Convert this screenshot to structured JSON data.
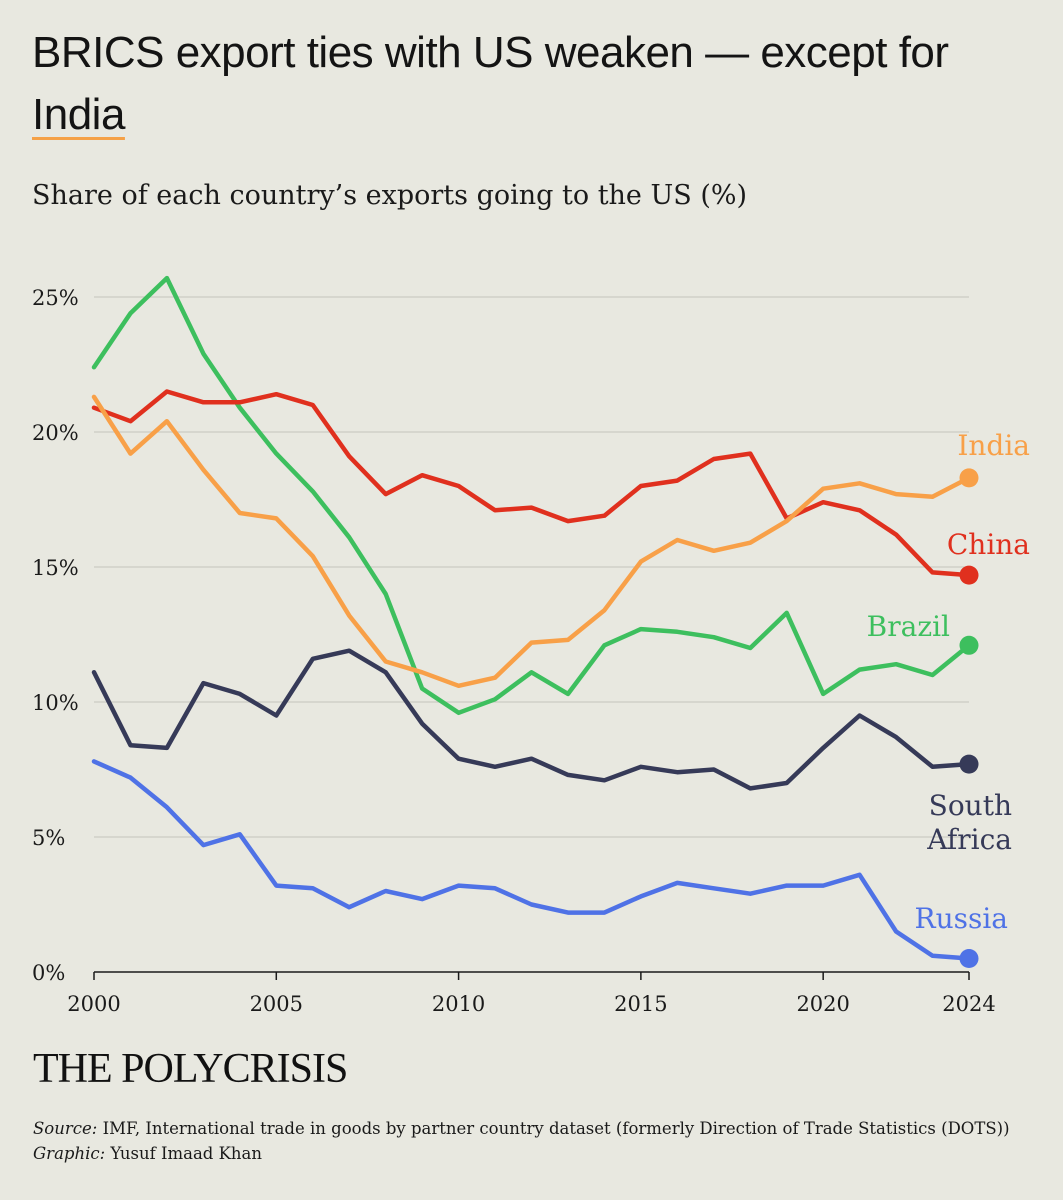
{
  "header": {
    "title_main": "BRICS export ties with US weaken — except for ",
    "title_highlight": "India",
    "subtitle": "Share of each country’s exports going to the US (%)"
  },
  "footer": {
    "brand": "THE POLYCRISIS",
    "source_label": "Source:",
    "source_text": "IMF, International trade in goods by partner country dataset (formerly Direction of Trade Statistics (DOTS))",
    "graphic_label": "Graphic:",
    "graphic_text": "Yusuf Imaad Khan"
  },
  "chart_data": {
    "type": "line",
    "title": "Share of each country’s exports going to the US (%)",
    "xlabel": "",
    "ylabel": "",
    "xlim": [
      2000,
      2024
    ],
    "ylim": [
      0,
      25
    ],
    "x_ticks": [
      2000,
      2005,
      2010,
      2015,
      2020,
      2024
    ],
    "y_ticks": [
      0,
      5,
      10,
      15,
      20,
      25
    ],
    "y_tick_labels": [
      "0%",
      "5%",
      "10%",
      "15%",
      "20%",
      "25%"
    ],
    "x": [
      2000,
      2001,
      2002,
      2003,
      2004,
      2005,
      2006,
      2007,
      2008,
      2009,
      2010,
      2011,
      2012,
      2013,
      2014,
      2015,
      2016,
      2017,
      2018,
      2019,
      2020,
      2021,
      2022,
      2023,
      2024
    ],
    "series": [
      {
        "name": "Russia",
        "label": "Russia",
        "color": "#4f72e6",
        "values": [
          7.8,
          7.2,
          6.1,
          4.7,
          5.1,
          3.2,
          3.1,
          2.4,
          3.0,
          2.7,
          3.2,
          3.1,
          2.5,
          2.2,
          2.2,
          2.8,
          3.3,
          3.1,
          2.9,
          3.2,
          3.2,
          3.6,
          1.5,
          0.6,
          0.5
        ]
      },
      {
        "name": "South Africa",
        "label": "South Africa",
        "label_lines": [
          "South",
          "Africa"
        ],
        "color": "#363a58",
        "values": [
          11.1,
          8.4,
          8.3,
          10.7,
          10.3,
          9.5,
          11.6,
          11.9,
          11.1,
          9.2,
          7.9,
          7.6,
          7.9,
          7.3,
          7.1,
          7.6,
          7.4,
          7.5,
          6.8,
          7.0,
          8.3,
          9.5,
          8.7,
          7.6,
          7.7
        ]
      },
      {
        "name": "Brazil",
        "label": "Brazil",
        "color": "#3dbf5e",
        "values": [
          22.4,
          24.4,
          25.7,
          22.9,
          20.9,
          19.2,
          17.8,
          16.1,
          14.0,
          10.5,
          9.6,
          10.1,
          11.1,
          10.3,
          12.1,
          12.7,
          12.6,
          12.4,
          12.0,
          13.3,
          10.3,
          11.2,
          11.4,
          11.0,
          12.1
        ]
      },
      {
        "name": "China",
        "label": "China",
        "color": "#e0301e",
        "values": [
          20.9,
          20.4,
          21.5,
          21.1,
          21.1,
          21.4,
          21.0,
          19.1,
          17.7,
          18.4,
          18.0,
          17.1,
          17.2,
          16.7,
          16.9,
          18.0,
          18.2,
          19.0,
          19.2,
          16.8,
          17.4,
          17.1,
          16.2,
          14.8,
          14.7
        ]
      },
      {
        "name": "India",
        "label": "India",
        "color": "#f8a048",
        "values": [
          21.3,
          19.2,
          20.4,
          18.6,
          17.0,
          16.8,
          15.4,
          13.2,
          11.5,
          11.1,
          10.6,
          10.9,
          12.2,
          12.3,
          13.4,
          15.2,
          16.0,
          15.6,
          15.9,
          16.7,
          17.9,
          18.1,
          17.7,
          17.6,
          18.3
        ]
      }
    ]
  }
}
